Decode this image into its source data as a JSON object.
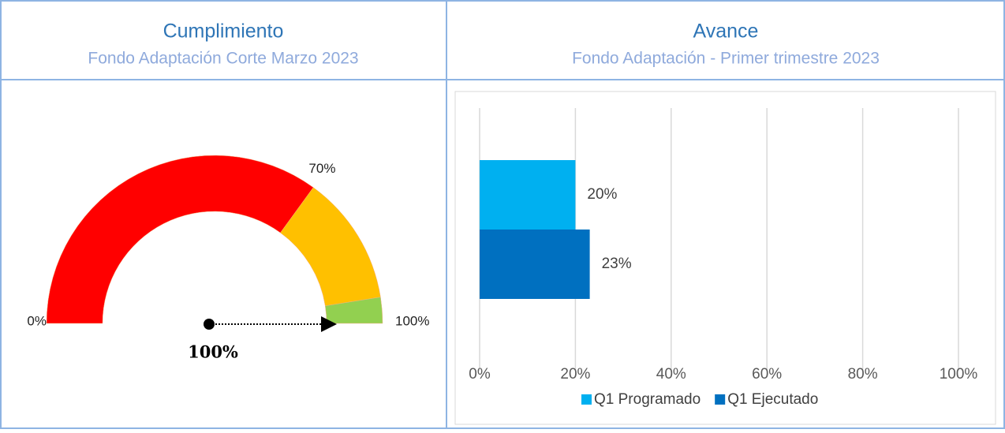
{
  "header": {
    "left": {
      "title": "Cumplimiento",
      "subtitle": "Fondo Adaptación Corte Marzo 2023"
    },
    "right": {
      "title": "Avance",
      "subtitle": "Fondo Adaptación - Primer trimestre 2023"
    }
  },
  "chart_data": [
    {
      "type": "gauge",
      "bands": [
        {
          "to": 70,
          "color": "#ff0000"
        },
        {
          "to": 95,
          "color": "#ffc000"
        },
        {
          "to": 100,
          "color": "#92d050"
        }
      ],
      "xlim": [
        0,
        100
      ],
      "xticks": [
        {
          "value": 0,
          "label": "0%"
        },
        {
          "value": 70,
          "label": "70%"
        },
        {
          "value": 100,
          "label": "100%"
        }
      ],
      "value": 100,
      "value_label": "100%"
    },
    {
      "type": "hbar",
      "series": [
        {
          "name": "Q1 Programado",
          "color": "#00b0f0",
          "values": [
            20
          ],
          "value_labels": [
            "20%"
          ]
        },
        {
          "name": "Q1 Ejecutado",
          "color": "#0070c0",
          "values": [
            23
          ],
          "value_labels": [
            "23%"
          ]
        }
      ],
      "xlim": [
        0,
        100
      ],
      "xticks": [
        {
          "value": 0,
          "label": "0%"
        },
        {
          "value": 20,
          "label": "20%"
        },
        {
          "value": 40,
          "label": "40%"
        },
        {
          "value": 60,
          "label": "60%"
        },
        {
          "value": 80,
          "label": "80%"
        },
        {
          "value": 100,
          "label": "100%"
        }
      ],
      "grid": true,
      "legend": "bottom"
    }
  ]
}
